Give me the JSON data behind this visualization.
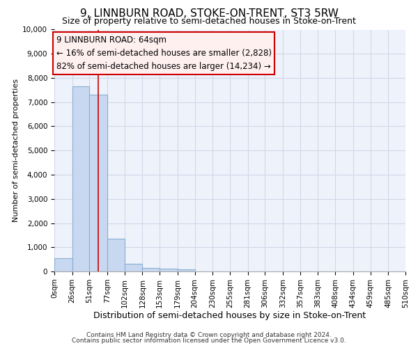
{
  "title": "9, LINNBURN ROAD, STOKE-ON-TRENT, ST3 5RW",
  "subtitle": "Size of property relative to semi-detached houses in Stoke-on-Trent",
  "xlabel": "Distribution of semi-detached houses by size in Stoke-on-Trent",
  "ylabel": "Number of semi-detached properties",
  "footer1": "Contains HM Land Registry data © Crown copyright and database right 2024.",
  "footer2": "Contains public sector information licensed under the Open Government Licence v3.0.",
  "annotation_title": "9 LINNBURN ROAD: 64sqm",
  "annotation_line1": "← 16% of semi-detached houses are smaller (2,828)",
  "annotation_line2": "82% of semi-detached houses are larger (14,234) →",
  "property_size": 64,
  "bin_edges": [
    0,
    26,
    51,
    77,
    102,
    128,
    153,
    179,
    204,
    230,
    255,
    281,
    306,
    332,
    357,
    383,
    408,
    434,
    459,
    485,
    510
  ],
  "bar_heights": [
    550,
    7650,
    7300,
    1350,
    320,
    155,
    110,
    80,
    0,
    0,
    0,
    0,
    0,
    0,
    0,
    0,
    0,
    0,
    0,
    0
  ],
  "bar_color": "#c8d8f0",
  "bar_edge_color": "#8aaed4",
  "vline_color": "#cc0000",
  "vline_x": 64,
  "annotation_box_facecolor": "#fff0f0",
  "annotation_box_edgecolor": "#cc0000",
  "grid_color": "#d0d8e8",
  "background_color": "#eef2fa",
  "ylim": [
    0,
    10000
  ],
  "yticks": [
    0,
    1000,
    2000,
    3000,
    4000,
    5000,
    6000,
    7000,
    8000,
    9000,
    10000
  ],
  "title_fontsize": 11,
  "subtitle_fontsize": 9,
  "ylabel_fontsize": 8,
  "xlabel_fontsize": 9,
  "tick_fontsize": 7.5,
  "annotation_fontsize": 8.5,
  "footer_fontsize": 6.5
}
